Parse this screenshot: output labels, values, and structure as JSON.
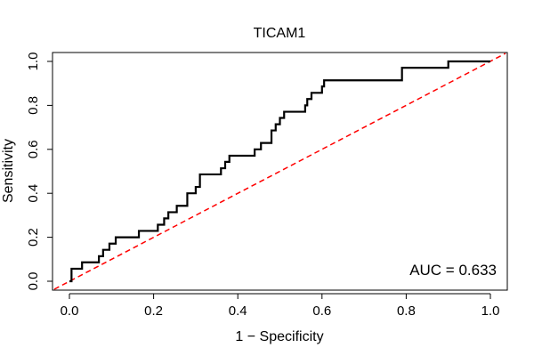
{
  "chart_data": {
    "type": "line",
    "title": "TICAM1",
    "xlabel": "1 − Specificity",
    "ylabel": "Sensitivity",
    "xlim": [
      0,
      1
    ],
    "ylim": [
      0,
      1
    ],
    "x_ticks": [
      "0.0",
      "0.2",
      "0.4",
      "0.6",
      "0.8",
      "1.0"
    ],
    "y_ticks": [
      "0.0",
      "0.2",
      "0.4",
      "0.6",
      "0.8",
      "1.0"
    ],
    "grid": false,
    "legend": "none",
    "annotation": "AUC = 0.633",
    "reference_line": {
      "from": [
        0,
        0
      ],
      "to": [
        1,
        1
      ],
      "color": "#ff0000",
      "style": "dashed"
    },
    "series": [
      {
        "color": "#000000",
        "x": [
          0.0,
          0.005,
          0.005,
          0.03,
          0.03,
          0.07,
          0.07,
          0.08,
          0.08,
          0.095,
          0.095,
          0.11,
          0.11,
          0.165,
          0.165,
          0.21,
          0.21,
          0.225,
          0.225,
          0.235,
          0.235,
          0.255,
          0.255,
          0.28,
          0.28,
          0.3,
          0.3,
          0.31,
          0.31,
          0.36,
          0.36,
          0.37,
          0.37,
          0.38,
          0.38,
          0.44,
          0.44,
          0.455,
          0.455,
          0.48,
          0.48,
          0.49,
          0.49,
          0.5,
          0.5,
          0.51,
          0.51,
          0.56,
          0.56,
          0.565,
          0.565,
          0.575,
          0.575,
          0.6,
          0.6,
          0.605,
          0.605,
          0.62,
          0.62,
          0.79,
          0.79,
          0.8,
          0.8,
          0.9,
          0.9,
          1.0
        ],
        "y": [
          0.0,
          0.0,
          0.057,
          0.057,
          0.086,
          0.086,
          0.114,
          0.114,
          0.143,
          0.143,
          0.171,
          0.171,
          0.2,
          0.2,
          0.229,
          0.229,
          0.257,
          0.257,
          0.286,
          0.286,
          0.314,
          0.314,
          0.343,
          0.343,
          0.4,
          0.4,
          0.429,
          0.429,
          0.486,
          0.486,
          0.514,
          0.514,
          0.543,
          0.543,
          0.571,
          0.571,
          0.6,
          0.6,
          0.629,
          0.629,
          0.686,
          0.686,
          0.714,
          0.714,
          0.743,
          0.743,
          0.771,
          0.771,
          0.8,
          0.8,
          0.829,
          0.829,
          0.857,
          0.857,
          0.886,
          0.886,
          0.914,
          0.914,
          0.914,
          0.914,
          0.971,
          0.971,
          0.971,
          0.971,
          1.0,
          1.0
        ]
      }
    ]
  }
}
